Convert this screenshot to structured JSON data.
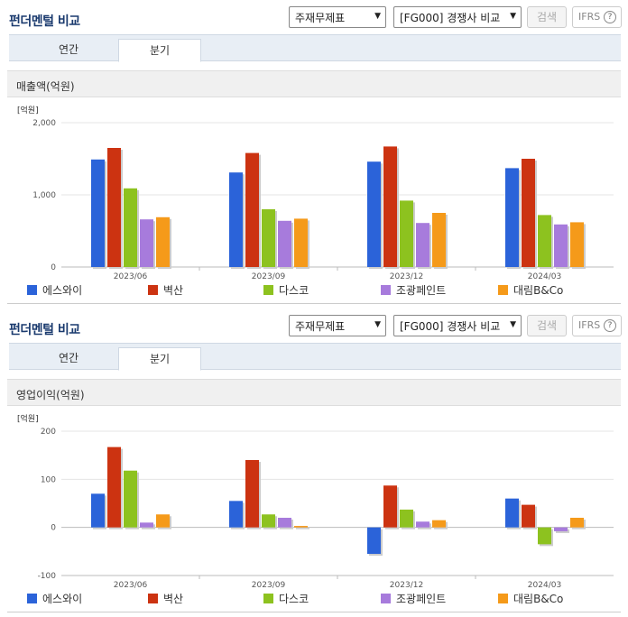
{
  "colors": [
    "#2b63d9",
    "#cc3311",
    "#8dc21f",
    "#a77bdc",
    "#f59a1a"
  ],
  "panels": [
    {
      "header": {
        "title": "펀더멘털 비교",
        "select1": "주재무제표",
        "select2": "[FG000] 경쟁사 비교",
        "search_button": "검색",
        "ifrs": "IFRS",
        "help": "?"
      },
      "tabs": [
        {
          "label": "연간"
        },
        {
          "label": "분기"
        }
      ],
      "section_title": "매출액(억원)",
      "unit": "[억원]",
      "legend": [
        "에스와이",
        "벽산",
        "다스코",
        "조광페인트",
        "대림B&Co"
      ],
      "chart_data": {
        "type": "bar",
        "categories": [
          "2023/06",
          "2023/09",
          "2023/12",
          "2024/03"
        ],
        "series": [
          {
            "name": "에스와이",
            "values": [
              1490,
              1310,
              1460,
              1370
            ]
          },
          {
            "name": "벽산",
            "values": [
              1650,
              1580,
              1670,
              1500
            ]
          },
          {
            "name": "다스코",
            "values": [
              1090,
              800,
              920,
              720
            ]
          },
          {
            "name": "조광페인트",
            "values": [
              660,
              640,
              610,
              590
            ]
          },
          {
            "name": "대림B&Co",
            "values": [
              690,
              670,
              750,
              620
            ]
          }
        ],
        "ylim": [
          0,
          2000
        ],
        "yticks": [
          0,
          1000,
          2000
        ],
        "ytick_labels": [
          "0",
          "1,000",
          "2,000"
        ]
      }
    },
    {
      "header": {
        "title": "펀더멘털 비교",
        "select1": "주재무제표",
        "select2": "[FG000] 경쟁사 비교",
        "search_button": "검색",
        "ifrs": "IFRS",
        "help": "?"
      },
      "tabs": [
        {
          "label": "연간"
        },
        {
          "label": "분기"
        }
      ],
      "section_title": "영업이익(억원)",
      "unit": "[억원]",
      "legend": [
        "에스와이",
        "벽산",
        "다스코",
        "조광페인트",
        "대림B&Co"
      ],
      "chart_data": {
        "type": "bar",
        "categories": [
          "2023/06",
          "2023/09",
          "2023/12",
          "2024/03"
        ],
        "series": [
          {
            "name": "에스와이",
            "values": [
              70,
              55,
              -55,
              60
            ]
          },
          {
            "name": "벽산",
            "values": [
              167,
              140,
              87,
              47
            ]
          },
          {
            "name": "다스코",
            "values": [
              118,
              27,
              37,
              -35
            ]
          },
          {
            "name": "조광페인트",
            "values": [
              10,
              20,
              12,
              -8
            ]
          },
          {
            "name": "대림B&Co",
            "values": [
              27,
              3,
              15,
              20
            ]
          }
        ],
        "ylim": [
          -100,
          200
        ],
        "yticks": [
          -100,
          0,
          100,
          200
        ],
        "ytick_labels": [
          "-100",
          "0",
          "100",
          "200"
        ]
      }
    }
  ]
}
